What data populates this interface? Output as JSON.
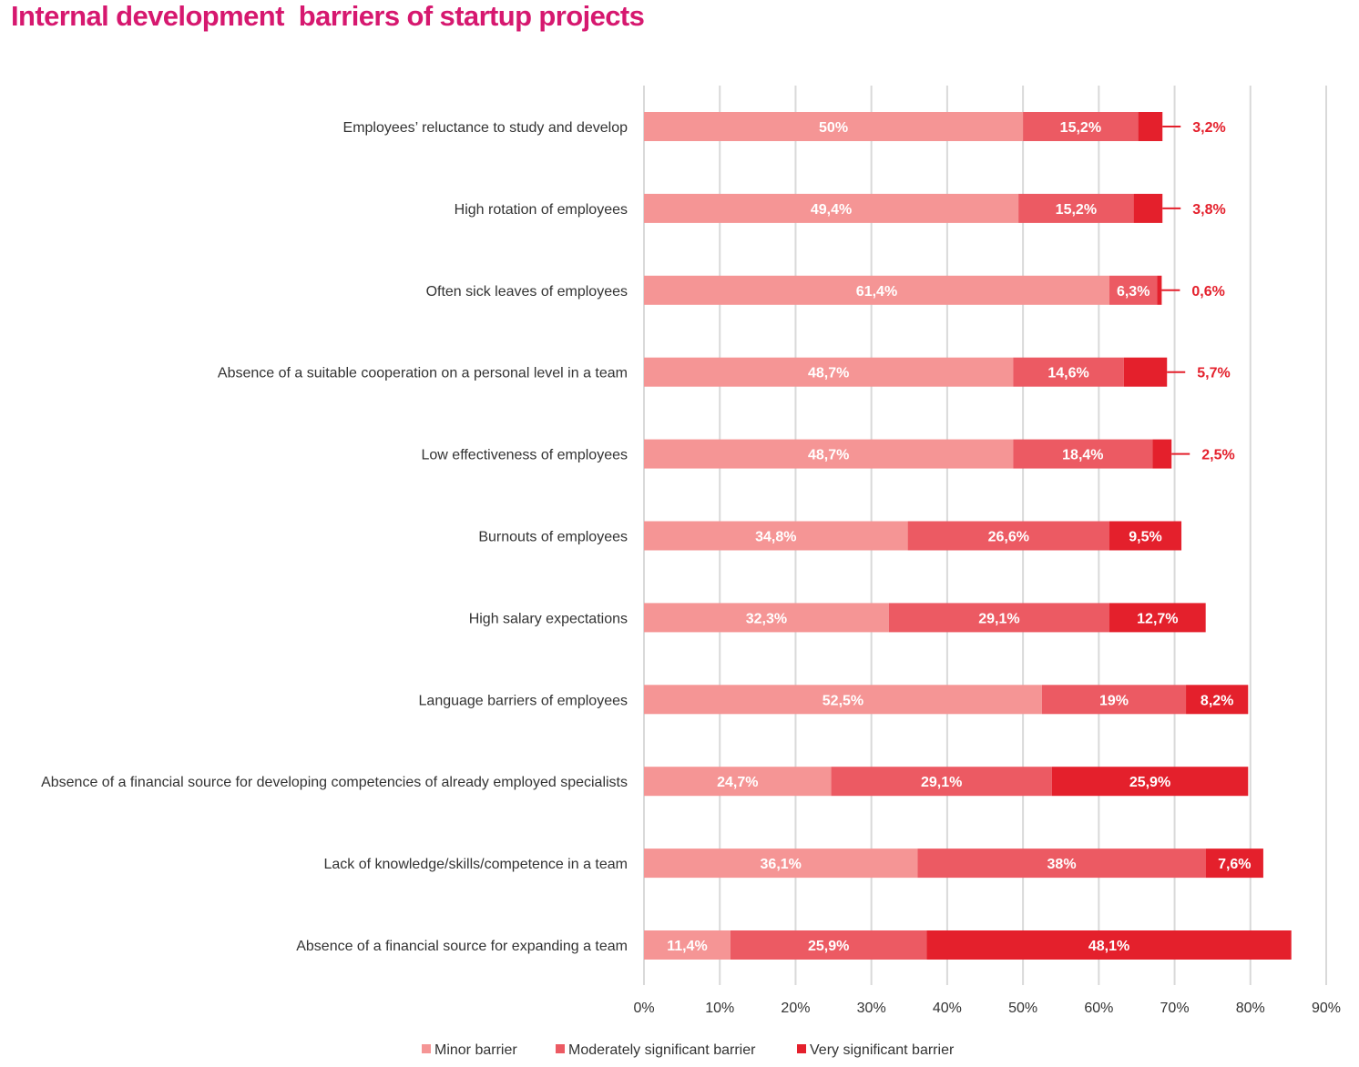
{
  "chart_data": {
    "type": "bar",
    "orientation": "horizontal",
    "stacked": true,
    "title": "Internal development  barriers of startup projects",
    "xlabel": "",
    "ylabel": "",
    "xlim": [
      0,
      90
    ],
    "grid": true,
    "legend_position": "bottom",
    "x_tick_labels": [
      "0%",
      "10%",
      "20%",
      "30%",
      "40%",
      "50%",
      "60%",
      "70%",
      "80%",
      "90%"
    ],
    "categories": [
      "Employees’ reluctance to study and develop",
      "High rotation of employees",
      "Often sick leaves of employees",
      "Absence of a suitable cooperation on a personal level in a team",
      "Low effectiveness of employees",
      "Burnouts of employees",
      "High salary expectations",
      "Language barriers of employees",
      "Absence of a financial source for developing competencies of already employed specialists",
      "Lack of knowledge/skills/competence in a team",
      "Absence of a financial source for expanding a team"
    ],
    "series": [
      {
        "name": "Minor barrier",
        "color": "#f59595",
        "values": [
          50,
          49.4,
          61.4,
          48.7,
          48.7,
          34.8,
          32.3,
          52.5,
          24.7,
          36.1,
          11.4
        ],
        "labels": [
          "50%",
          "49,4%",
          "61,4%",
          "48,7%",
          "48,7%",
          "34,8%",
          "32,3%",
          "52,5%",
          "24,7%",
          "36,1%",
          "11,4%"
        ],
        "label_outside": [
          false,
          false,
          false,
          false,
          false,
          false,
          false,
          false,
          false,
          false,
          false
        ]
      },
      {
        "name": "Moderately significant barrier",
        "color": "#ec5a63",
        "values": [
          15.2,
          15.2,
          6.3,
          14.6,
          18.4,
          26.6,
          29.1,
          19,
          29.1,
          38,
          25.9
        ],
        "labels": [
          "15,2%",
          "15,2%",
          "6,3%",
          "14,6%",
          "18,4%",
          "26,6%",
          "29,1%",
          "19%",
          "29,1%",
          "38%",
          "25,9%"
        ],
        "label_outside": [
          false,
          false,
          false,
          false,
          false,
          false,
          false,
          false,
          false,
          false,
          false
        ]
      },
      {
        "name": "Very significant barrier",
        "color": "#e4202c",
        "values": [
          3.2,
          3.8,
          0.6,
          5.7,
          2.5,
          9.5,
          12.7,
          8.2,
          25.9,
          7.6,
          48.1
        ],
        "labels": [
          "3,2%",
          "3,8%",
          "0,6%",
          "5,7%",
          "2,5%",
          "9,5%",
          "12,7%",
          "8,2%",
          "25,9%",
          "7,6%",
          "48,1%"
        ],
        "label_outside": [
          true,
          true,
          true,
          true,
          true,
          false,
          false,
          false,
          false,
          false,
          false
        ]
      }
    ]
  },
  "colors": {
    "title": "#d6186f",
    "grid": "#d9d9d9",
    "callout": "#e4202c"
  }
}
